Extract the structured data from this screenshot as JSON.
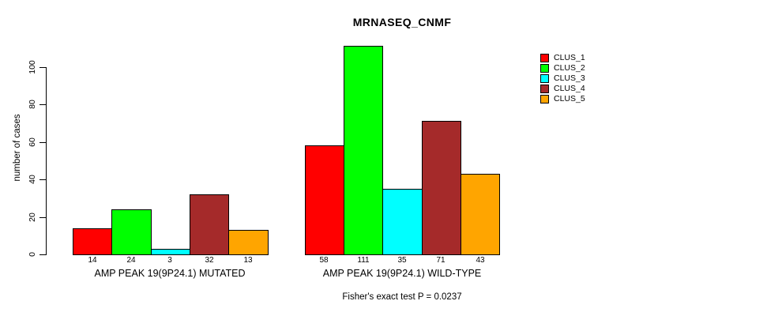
{
  "chart_data": {
    "type": "bar",
    "title": "MRNASEQ_CNMF",
    "xlabel": "",
    "ylabel": "number of cases",
    "categories": [
      "AMP PEAK 19(9P24.1) MUTATED",
      "AMP PEAK 19(9P24.1) WILD-TYPE"
    ],
    "series": [
      {
        "name": "CLUS_1",
        "color": "#FF0000",
        "values": [
          14,
          58
        ]
      },
      {
        "name": "CLUS_2",
        "color": "#00FF00",
        "values": [
          24,
          111
        ]
      },
      {
        "name": "CLUS_3",
        "color": "#00FFFF",
        "values": [
          3,
          35
        ]
      },
      {
        "name": "CLUS_4",
        "color": "#A52A2A",
        "values": [
          32,
          71
        ]
      },
      {
        "name": "CLUS_5",
        "color": "#FFA500",
        "values": [
          13,
          43
        ]
      }
    ],
    "yticks": [
      0,
      20,
      40,
      60,
      80,
      100
    ],
    "ylim": [
      0,
      111
    ],
    "grid": false,
    "bar_value_labels_shown": true,
    "legend_position": "right-inside",
    "annotation": "Fisher's exact test P = 0.0237",
    "colors": {
      "background": "#FFFFFF",
      "axis": "#000000",
      "bar_border": "#000000"
    }
  }
}
